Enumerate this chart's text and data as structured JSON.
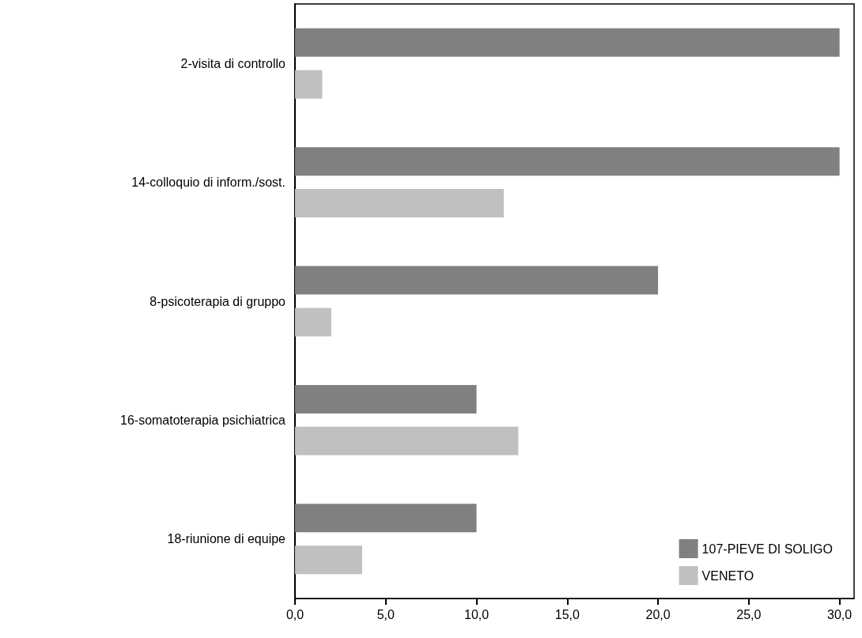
{
  "chart_data": {
    "type": "bar",
    "orientation": "horizontal",
    "categories": [
      "2-visita di controllo",
      "14-colloquio di inform./sost.",
      "8-psicoterapia di gruppo",
      "16-somatoterapia psichiatrica",
      "18-riunione di equipe"
    ],
    "series": [
      {
        "name": "107-PIEVE DI SOLIGO",
        "color": "#808080",
        "values": [
          30,
          30,
          20,
          10,
          10
        ]
      },
      {
        "name": "VENETO",
        "color": "#c0c0c0",
        "values": [
          1.5,
          11.5,
          2.0,
          12.3,
          3.7
        ]
      }
    ],
    "xlim": [
      0,
      30.8
    ],
    "xticks": [
      {
        "value": 0,
        "label": "0,0"
      },
      {
        "value": 5,
        "label": "5,0"
      },
      {
        "value": 10,
        "label": "10,0"
      },
      {
        "value": 15,
        "label": "15,0"
      },
      {
        "value": 20,
        "label": "20,0"
      },
      {
        "value": 25,
        "label": "25,0"
      },
      {
        "value": 30,
        "label": "30,0"
      }
    ],
    "grid": false,
    "legend": "bottom right"
  }
}
